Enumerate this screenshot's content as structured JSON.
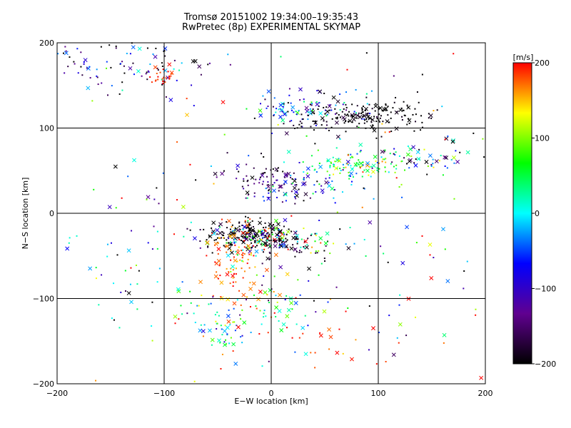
{
  "chart_data": {
    "type": "scatter",
    "title": "Tromsø 20151002 19:34:00–19:35:43",
    "subtitle": "RwPretec (8p) EXPERIMENTAL SKYMAP",
    "xlabel": "E−W location [km]",
    "ylabel": "N−S location [km]",
    "xlim": [
      -200,
      200
    ],
    "ylim": [
      -200,
      200
    ],
    "x_ticks": [
      -200,
      -100,
      0,
      100,
      200
    ],
    "y_ticks": [
      -200,
      -100,
      0,
      100,
      200
    ],
    "x_tick_labels": [
      "−200",
      "−100",
      "0",
      "100",
      "200"
    ],
    "y_tick_labels": [
      "−200",
      "−100",
      "0",
      "100",
      "200"
    ],
    "grid": true,
    "markers": [
      "dot",
      "cross"
    ],
    "colorbar": {
      "label": "[m/s]",
      "range": [
        -200,
        200
      ],
      "ticks": [
        200,
        100,
        0,
        -100,
        -200
      ],
      "tick_labels": [
        "200",
        "100",
        "0",
        "−100",
        "−200"
      ],
      "colors": [
        "#ff0000",
        "#ffff00",
        "#00ff00",
        "#00ffff",
        "#0000ff",
        "#600090",
        "#000000"
      ]
    },
    "clusters": [
      {
        "cx": -140,
        "cy": 175,
        "sx": 45,
        "sy": 18,
        "n": 110,
        "v": -120,
        "vs": 90
      },
      {
        "cx": -100,
        "cy": 160,
        "sx": 6,
        "sy": 5,
        "n": 25,
        "v": 190,
        "vs": 10
      },
      {
        "cx": 30,
        "cy": 120,
        "sx": 30,
        "sy": 12,
        "n": 90,
        "v": -60,
        "vs": 70
      },
      {
        "cx": 70,
        "cy": 115,
        "sx": 25,
        "sy": 10,
        "n": 110,
        "v": -200,
        "vs": 15
      },
      {
        "cx": 110,
        "cy": 115,
        "sx": 20,
        "sy": 8,
        "n": 70,
        "v": -200,
        "vs": 10
      },
      {
        "cx": 80,
        "cy": 55,
        "sx": 25,
        "sy": 10,
        "n": 110,
        "v": 60,
        "vs": 60
      },
      {
        "cx": 150,
        "cy": 65,
        "sx": 35,
        "sy": 12,
        "n": 60,
        "v": -80,
        "vs": 120
      },
      {
        "cx": 0,
        "cy": 40,
        "sx": 20,
        "sy": 12,
        "n": 80,
        "v": -160,
        "vs": 40
      },
      {
        "cx": 40,
        "cy": 35,
        "sx": 30,
        "sy": 20,
        "n": 60,
        "v": -30,
        "vs": 90
      },
      {
        "cx": -20,
        "cy": -25,
        "sx": 22,
        "sy": 8,
        "n": 180,
        "v": -200,
        "vs": 20
      },
      {
        "cx": -5,
        "cy": -30,
        "sx": 25,
        "sy": 10,
        "n": 120,
        "v": 30,
        "vs": 120
      },
      {
        "cx": -35,
        "cy": -60,
        "sx": 12,
        "sy": 25,
        "n": 90,
        "v": 180,
        "vs": 25
      },
      {
        "cx": 20,
        "cy": -40,
        "sx": 25,
        "sy": 8,
        "n": 50,
        "v": -190,
        "vs": 20
      },
      {
        "cx": -45,
        "cy": -135,
        "sx": 12,
        "sy": 12,
        "n": 45,
        "v": 20,
        "vs": 50
      },
      {
        "cx": 0,
        "cy": -110,
        "sx": 20,
        "sy": 20,
        "n": 50,
        "v": 60,
        "vs": 110
      },
      {
        "cx": -120,
        "cy": -60,
        "sx": 35,
        "sy": 40,
        "n": 40,
        "v": -40,
        "vs": 130
      },
      {
        "cx": 50,
        "cy": -20,
        "sx": 80,
        "sy": 80,
        "n": 90,
        "v": 0,
        "vs": 150
      },
      {
        "cx": 0,
        "cy": 0,
        "sx": 180,
        "sy": 180,
        "n": 180,
        "v": 0,
        "vs": 150
      },
      {
        "cx": 60,
        "cy": -150,
        "sx": 50,
        "sy": 20,
        "n": 20,
        "v": 190,
        "vs": 15
      }
    ]
  }
}
